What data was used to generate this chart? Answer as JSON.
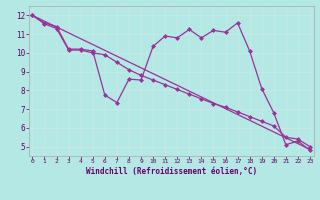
{
  "xlabel": "Windchill (Refroidissement éolien,°C)",
  "bg_color": "#b3e8e5",
  "grid_color": "#c8e8e5",
  "line_color": "#993399",
  "marker_color": "#993399",
  "series1_x": [
    0,
    1,
    2,
    3,
    4,
    5,
    6,
    7,
    8,
    9,
    10,
    11,
    12,
    13,
    14,
    15,
    16,
    17,
    18,
    19,
    20,
    21,
    22,
    23
  ],
  "series1_y": [
    12.0,
    11.6,
    11.4,
    10.2,
    10.2,
    10.1,
    7.75,
    7.35,
    8.6,
    8.55,
    10.35,
    10.9,
    10.8,
    11.25,
    10.8,
    11.2,
    11.1,
    11.6,
    10.1,
    8.1,
    6.8,
    5.1,
    5.3,
    4.8
  ],
  "series2_x": [
    0,
    1,
    2,
    3,
    4,
    5,
    6,
    7,
    8,
    9,
    10,
    11,
    12,
    13,
    14,
    15,
    16,
    17,
    18,
    19,
    20,
    21,
    22,
    23
  ],
  "series2_y": [
    12.0,
    11.55,
    11.3,
    10.15,
    10.15,
    10.0,
    9.9,
    9.5,
    9.1,
    8.8,
    8.55,
    8.3,
    8.05,
    7.8,
    7.55,
    7.3,
    7.1,
    6.85,
    6.6,
    6.35,
    6.1,
    5.5,
    5.4,
    5.0
  ],
  "series3_x": [
    0,
    23
  ],
  "series3_y": [
    12.0,
    4.85
  ],
  "ylim": [
    4.5,
    12.5
  ],
  "xlim": [
    -0.3,
    23.3
  ],
  "yticks": [
    5,
    6,
    7,
    8,
    9,
    10,
    11,
    12
  ],
  "xticks": [
    0,
    1,
    2,
    3,
    4,
    5,
    6,
    7,
    8,
    9,
    10,
    11,
    12,
    13,
    14,
    15,
    16,
    17,
    18,
    19,
    20,
    21,
    22,
    23
  ]
}
